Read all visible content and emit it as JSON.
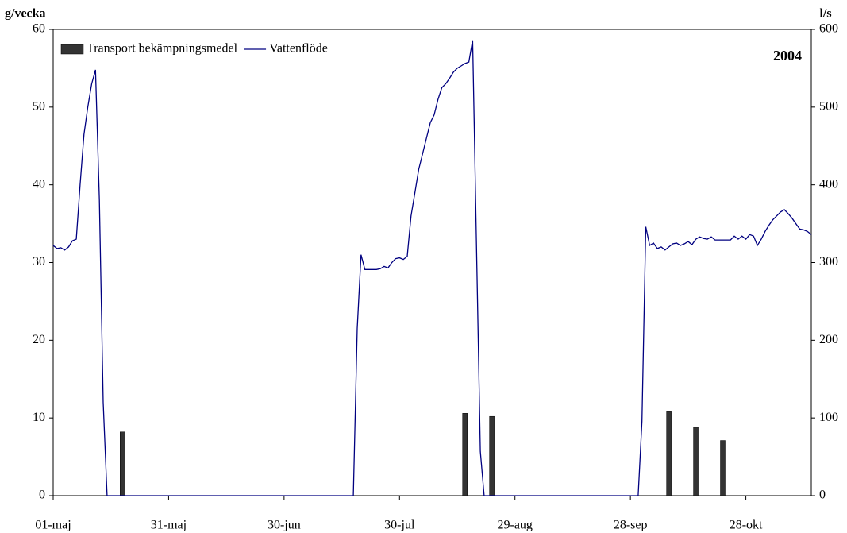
{
  "chart_data": {
    "type": "combo",
    "annotation": "2004",
    "y_label": "g/vecka",
    "y2_label": "l/s",
    "ylim": [
      0,
      60
    ],
    "yticks": [
      0,
      10,
      20,
      30,
      40,
      50,
      60
    ],
    "y2lim": [
      0,
      600
    ],
    "y2ticks": [
      0,
      100,
      200,
      300,
      400,
      500,
      600
    ],
    "xlim": [
      "01-maj",
      "14-nov"
    ],
    "xticks": [
      "01-maj",
      "31-maj",
      "30-jun",
      "30-jul",
      "29-aug",
      "28-sep",
      "28-okt"
    ],
    "legend": "top-left",
    "series": [
      {
        "name": "Transport bekämpningsmedel",
        "type": "bar",
        "color": "#333333",
        "x": [
          "19-maj",
          "16-aug",
          "23-aug",
          "08-okt",
          "15-okt",
          "22-okt"
        ],
        "values": [
          8.2,
          10.6,
          10.2,
          10.8,
          8.8,
          7.1
        ]
      },
      {
        "name": "Vattenflöde",
        "type": "line",
        "axis": "y2",
        "color": "#000080",
        "x": [
          "01-maj",
          "02-maj",
          "03-maj",
          "04-maj",
          "05-maj",
          "06-maj",
          "07-maj",
          "08-maj",
          "09-maj",
          "10-maj",
          "11-maj",
          "12-maj",
          "13-maj",
          "14-maj",
          "15-maj",
          "18-jul",
          "19-jul",
          "20-jul",
          "21-jul",
          "22-jul",
          "23-jul",
          "24-jul",
          "25-jul",
          "26-jul",
          "27-jul",
          "28-jul",
          "29-jul",
          "30-jul",
          "31-jul",
          "01-aug",
          "02-aug",
          "03-aug",
          "04-aug",
          "05-aug",
          "06-aug",
          "07-aug",
          "08-aug",
          "09-aug",
          "10-aug",
          "11-aug",
          "12-aug",
          "13-aug",
          "14-aug",
          "15-aug",
          "16-aug",
          "17-aug",
          "18-aug",
          "20-aug",
          "21-aug",
          "30-sep",
          "01-okt",
          "02-okt",
          "03-okt",
          "04-okt",
          "05-okt",
          "06-okt",
          "07-okt",
          "08-okt",
          "09-okt",
          "10-okt",
          "11-okt",
          "12-okt",
          "13-okt",
          "14-okt",
          "15-okt",
          "16-okt",
          "17-okt",
          "18-okt",
          "19-okt",
          "20-okt",
          "21-okt",
          "22-okt",
          "23-okt",
          "24-okt",
          "25-okt",
          "26-okt",
          "27-okt",
          "28-okt",
          "29-okt",
          "30-okt",
          "31-okt",
          "01-nov",
          "02-nov",
          "03-nov",
          "04-nov",
          "05-nov",
          "06-nov",
          "07-nov",
          "08-nov",
          "09-nov",
          "10-nov",
          "11-nov",
          "12-nov",
          "13-nov",
          "14-nov"
        ],
        "values": [
          322,
          318,
          319,
          316,
          320,
          328,
          330,
          400,
          465,
          500,
          530,
          548,
          380,
          120,
          0,
          0,
          215,
          310,
          291,
          291,
          291,
          291,
          292,
          295,
          293,
          300,
          305,
          306,
          304,
          308,
          360,
          390,
          420,
          440,
          460,
          480,
          490,
          510,
          525,
          530,
          537,
          545,
          550,
          553,
          556,
          558,
          586,
          57,
          0,
          0,
          96,
          346,
          322,
          325,
          318,
          320,
          316,
          320,
          324,
          325,
          322,
          324,
          327,
          323,
          330,
          333,
          331,
          330,
          333,
          329,
          329,
          329,
          329,
          329,
          334,
          330,
          334,
          330,
          336,
          334,
          322,
          330,
          340,
          348,
          355,
          360,
          365,
          368,
          363,
          357,
          350,
          343,
          342,
          340,
          336
        ]
      }
    ]
  }
}
